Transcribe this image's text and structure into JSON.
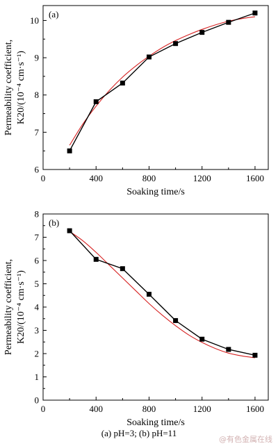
{
  "chart_data": [
    {
      "type": "line",
      "panel_label": "(a)",
      "xlabel": "Soaking time/s",
      "ylabel_line1": "Permeability coefficient,",
      "ylabel_line2": "K20/(10⁻⁴ cm·s⁻¹)",
      "xlim": [
        0,
        1700
      ],
      "ylim": [
        6,
        10.4
      ],
      "xticks": [
        0,
        400,
        800,
        1200,
        1600
      ],
      "yticks": [
        6,
        7,
        8,
        9,
        10
      ],
      "grid": false,
      "series": [
        {
          "kind": "data",
          "color": "#000000",
          "marker": "square",
          "x": [
            200,
            400,
            600,
            800,
            1000,
            1200,
            1400,
            1600
          ],
          "y": [
            6.5,
            7.82,
            8.32,
            9.02,
            9.38,
            9.68,
            9.95,
            10.2
          ]
        },
        {
          "kind": "fit",
          "color": "#d62020",
          "x": [
            200,
            300,
            400,
            500,
            600,
            700,
            800,
            900,
            1000,
            1100,
            1200,
            1300,
            1400,
            1500,
            1600
          ],
          "y": [
            6.65,
            7.22,
            7.7,
            8.12,
            8.48,
            8.78,
            9.04,
            9.27,
            9.46,
            9.62,
            9.76,
            9.88,
            9.98,
            10.05,
            10.1
          ]
        }
      ]
    },
    {
      "type": "line",
      "panel_label": "(b)",
      "xlabel": "Soaking time/s",
      "ylabel_line1": "Permeability coefficient,",
      "ylabel_line2": "K20/(10⁻⁴ cm·s⁻¹)",
      "xlim": [
        0,
        1700
      ],
      "ylim": [
        0,
        8
      ],
      "xticks": [
        0,
        400,
        800,
        1200,
        1600
      ],
      "yticks": [
        0,
        1,
        2,
        3,
        4,
        5,
        6,
        7,
        8
      ],
      "grid": false,
      "series": [
        {
          "kind": "data",
          "color": "#000000",
          "marker": "square",
          "x": [
            200,
            400,
            600,
            800,
            1000,
            1200,
            1400,
            1600
          ],
          "y": [
            7.28,
            6.05,
            5.65,
            4.55,
            3.42,
            2.62,
            2.18,
            1.93
          ]
        },
        {
          "kind": "fit",
          "color": "#d62020",
          "x": [
            200,
            300,
            400,
            500,
            600,
            700,
            800,
            900,
            1000,
            1100,
            1200,
            1300,
            1400,
            1500,
            1600
          ],
          "y": [
            7.25,
            6.85,
            6.35,
            5.8,
            5.25,
            4.7,
            4.15,
            3.65,
            3.2,
            2.8,
            2.48,
            2.22,
            2.02,
            1.9,
            1.82
          ]
        }
      ]
    }
  ],
  "caption": "(a) pH=3; (b) pH=11",
  "watermark": "@有色金属在线"
}
